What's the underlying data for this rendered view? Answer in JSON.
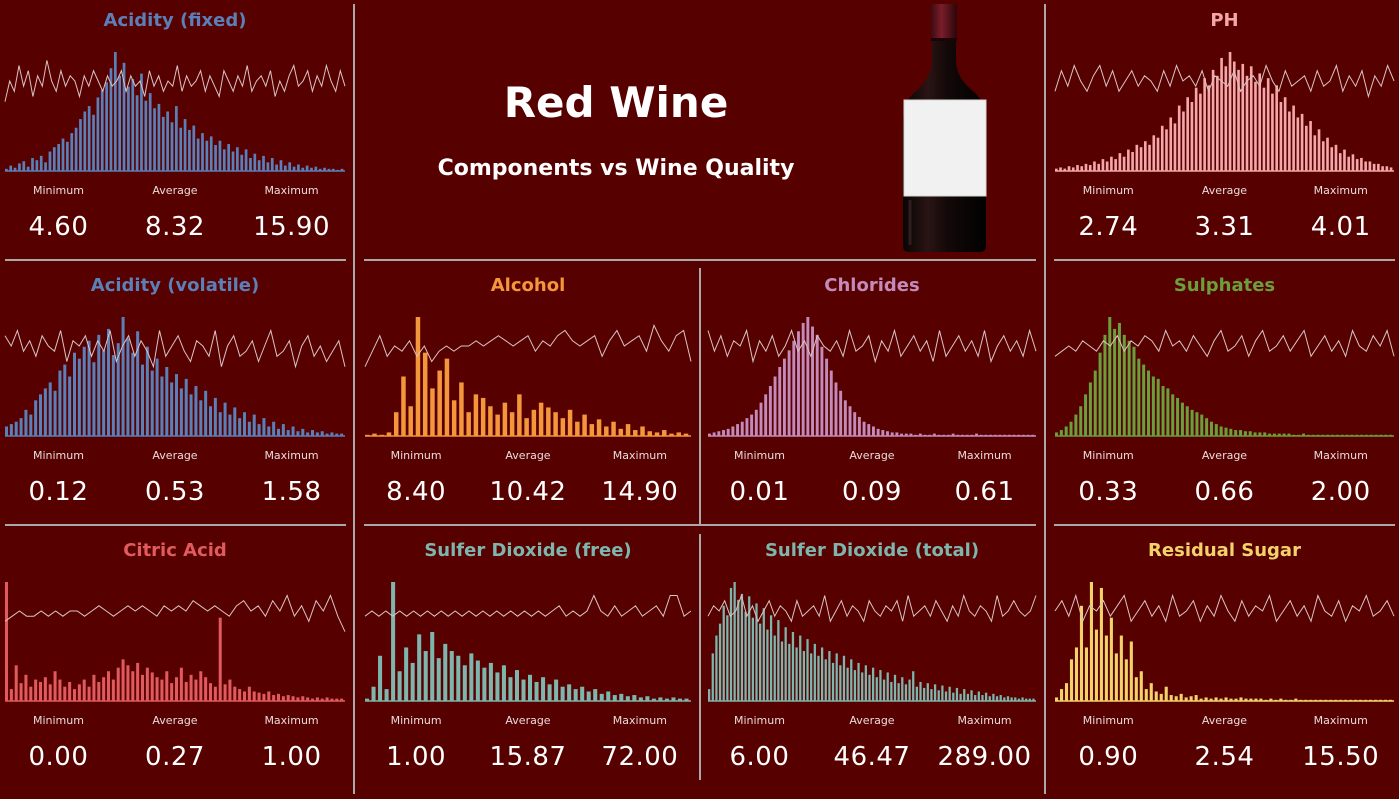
{
  "header": {
    "title": "Red Wine",
    "subtitle": "Components vs Wine Quality",
    "image": "wine-bottle-icon"
  },
  "labels": {
    "min": "Minimum",
    "avg": "Average",
    "max": "Maximum"
  },
  "colors": {
    "background": "#570000",
    "divider": "#a9a9a9",
    "quality_line": "#d9c3c3"
  },
  "chart_data": [
    {
      "id": "acidity-fixed",
      "type": "bar",
      "title": "Acidity (fixed)",
      "color": "#5b7fb8",
      "x_range": [
        4.6,
        15.9
      ],
      "values": [
        2,
        5,
        3,
        7,
        9,
        4,
        12,
        10,
        14,
        8,
        18,
        22,
        25,
        30,
        27,
        35,
        40,
        48,
        55,
        60,
        52,
        68,
        75,
        82,
        95,
        110,
        88,
        100,
        78,
        85,
        70,
        90,
        65,
        72,
        58,
        62,
        50,
        55,
        45,
        60,
        40,
        48,
        38,
        42,
        30,
        35,
        28,
        32,
        24,
        28,
        20,
        25,
        18,
        22,
        15,
        20,
        12,
        16,
        10,
        14,
        8,
        12,
        6,
        10,
        5,
        8,
        4,
        6,
        3,
        5,
        3,
        4,
        2,
        3,
        2,
        2,
        1,
        2
      ],
      "quality": [
        3.2,
        3.6,
        3.4,
        3.9,
        3.5,
        3.8,
        3.3,
        3.7,
        3.5,
        4.0,
        3.6,
        3.4,
        3.8,
        3.5,
        3.7,
        3.6,
        3.3,
        3.7,
        3.5,
        3.8,
        3.6,
        3.4,
        3.7,
        3.5,
        3.6,
        3.8,
        3.4,
        3.7,
        3.5,
        3.6,
        3.3,
        3.8,
        3.5,
        3.7,
        3.4,
        3.6,
        3.5,
        3.9,
        3.4,
        3.7,
        3.5,
        3.6,
        3.8,
        3.4,
        3.7,
        3.5,
        3.3,
        3.8,
        3.6,
        3.4,
        3.7,
        3.5,
        3.9,
        3.4,
        3.6,
        3.7,
        3.5,
        3.8,
        3.3,
        3.6,
        3.4,
        3.7,
        3.9,
        3.5,
        3.6,
        3.8,
        3.4,
        3.7,
        3.5,
        3.9,
        3.6,
        3.4,
        3.8,
        3.5
      ],
      "stats": {
        "min": "4.60",
        "avg": "8.32",
        "max": "15.90"
      }
    },
    {
      "id": "ph",
      "type": "bar",
      "title": "PH",
      "color": "#f4a7a9",
      "x_range": [
        2.74,
        4.01
      ],
      "values": [
        2,
        3,
        2,
        4,
        3,
        5,
        4,
        6,
        5,
        8,
        6,
        10,
        8,
        12,
        10,
        15,
        12,
        18,
        16,
        22,
        20,
        25,
        22,
        30,
        28,
        38,
        35,
        45,
        40,
        55,
        50,
        62,
        58,
        70,
        65,
        78,
        72,
        85,
        80,
        95,
        88,
        100,
        92,
        85,
        90,
        80,
        88,
        75,
        82,
        70,
        78,
        65,
        72,
        58,
        62,
        50,
        55,
        45,
        48,
        38,
        42,
        30,
        35,
        25,
        28,
        20,
        22,
        15,
        18,
        12,
        14,
        10,
        11,
        8,
        8,
        6,
        6,
        4,
        4,
        3
      ],
      "quality": [
        3.4,
        3.8,
        3.5,
        3.9,
        3.6,
        3.4,
        3.7,
        3.9,
        3.5,
        3.8,
        3.4,
        3.6,
        3.8,
        3.5,
        3.7,
        3.6,
        3.4,
        3.8,
        3.5,
        3.9,
        3.6,
        3.7,
        3.5,
        3.8,
        3.4,
        3.7,
        3.6,
        3.5,
        3.8,
        3.4,
        3.6,
        3.7,
        3.5,
        3.9,
        3.6,
        3.4,
        3.8,
        3.5,
        3.6,
        3.7,
        3.4,
        3.8,
        3.5,
        3.6,
        3.9,
        3.4,
        3.7,
        3.5,
        3.8,
        3.3,
        3.7,
        3.5,
        3.9,
        3.6
      ],
      "stats": {
        "min": "2.74",
        "avg": "3.31",
        "max": "4.01"
      }
    },
    {
      "id": "acidity-volatile",
      "type": "bar",
      "title": "Acidity (volatile)",
      "color": "#5b7fb8",
      "x_range": [
        0.12,
        1.58
      ],
      "values": [
        8,
        10,
        12,
        15,
        22,
        18,
        30,
        35,
        40,
        45,
        38,
        55,
        60,
        50,
        70,
        65,
        75,
        80,
        62,
        85,
        72,
        90,
        68,
        78,
        100,
        82,
        70,
        88,
        60,
        75,
        55,
        65,
        50,
        58,
        45,
        52,
        40,
        48,
        35,
        42,
        30,
        38,
        25,
        32,
        20,
        28,
        18,
        24,
        15,
        20,
        12,
        18,
        10,
        15,
        8,
        12,
        6,
        10,
        5,
        8,
        4,
        6,
        3,
        5,
        3,
        4,
        2,
        3,
        2,
        2
      ],
      "quality": [
        3.8,
        3.6,
        3.9,
        3.5,
        3.7,
        3.4,
        3.8,
        3.6,
        3.5,
        3.9,
        3.3,
        3.7,
        3.6,
        3.8,
        3.4,
        3.7,
        3.5,
        3.9,
        3.3,
        3.6,
        3.8,
        3.4,
        3.7,
        3.5,
        3.2,
        3.9,
        3.4,
        3.6,
        3.8,
        3.5,
        3.3,
        3.7,
        3.6,
        3.4,
        3.9,
        3.2,
        3.6,
        3.8,
        3.4,
        3.5,
        3.7,
        3.3,
        3.6,
        3.9,
        3.4,
        3.5,
        3.7,
        3.2,
        3.6,
        3.8,
        3.4,
        3.6,
        3.3,
        3.5,
        3.7,
        3.2
      ],
      "stats": {
        "min": "0.12",
        "avg": "0.53",
        "max": "1.58"
      }
    },
    {
      "id": "alcohol",
      "type": "bar",
      "title": "Alcohol",
      "color": "#f3963c",
      "x_range": [
        8.4,
        14.9
      ],
      "values": [
        1,
        2,
        1,
        3,
        20,
        50,
        25,
        100,
        70,
        40,
        55,
        65,
        30,
        45,
        20,
        35,
        32,
        25,
        18,
        28,
        20,
        35,
        15,
        22,
        28,
        24,
        20,
        15,
        22,
        12,
        18,
        10,
        14,
        8,
        12,
        6,
        10,
        5,
        8,
        4,
        3,
        5,
        2,
        3,
        2
      ],
      "quality": [
        3.2,
        3.5,
        3.8,
        3.4,
        3.6,
        3.5,
        3.7,
        3.4,
        3.6,
        3.3,
        3.5,
        3.6,
        3.5,
        3.6,
        3.6,
        3.7,
        3.6,
        3.7,
        3.8,
        3.7,
        3.6,
        3.7,
        3.8,
        3.5,
        3.7,
        3.6,
        3.8,
        3.9,
        3.7,
        3.6,
        3.7,
        3.8,
        3.4,
        3.7,
        3.9,
        3.6,
        3.7,
        3.8,
        3.5,
        4.0,
        3.7,
        3.5,
        3.8,
        3.9,
        3.3
      ],
      "stats": {
        "min": "8.40",
        "avg": "10.42",
        "max": "14.90"
      }
    },
    {
      "id": "chlorides",
      "type": "bar",
      "title": "Chlorides",
      "color": "#c38aba",
      "x_range": [
        0.01,
        0.61
      ],
      "values": [
        2,
        3,
        4,
        5,
        6,
        8,
        10,
        12,
        15,
        18,
        22,
        28,
        35,
        42,
        50,
        58,
        65,
        72,
        80,
        88,
        95,
        100,
        92,
        85,
        75,
        65,
        55,
        45,
        38,
        30,
        25,
        20,
        16,
        12,
        10,
        8,
        6,
        5,
        4,
        3,
        3,
        2,
        2,
        2,
        1,
        2,
        1,
        1,
        2,
        1,
        1,
        1,
        2,
        1,
        1,
        1,
        1,
        2,
        1,
        1,
        1,
        1,
        1,
        1,
        1,
        1,
        1,
        1,
        1,
        1
      ],
      "quality": [
        3.9,
        3.5,
        3.8,
        3.4,
        3.7,
        3.6,
        3.9,
        3.3,
        3.7,
        3.5,
        3.8,
        3.4,
        3.6,
        3.9,
        3.5,
        3.7,
        3.4,
        3.8,
        3.6,
        3.5,
        3.7,
        3.4,
        3.9,
        3.5,
        3.6,
        3.8,
        3.3,
        3.7,
        3.5,
        3.9,
        3.4,
        3.6,
        3.8,
        3.5,
        3.7,
        3.3,
        3.9,
        3.4,
        3.6,
        3.8,
        3.5,
        3.7,
        3.4,
        3.9,
        3.3,
        3.6,
        3.8,
        3.5,
        3.7,
        3.4,
        3.9,
        3.5
      ],
      "stats": {
        "min": "0.01",
        "avg": "0.09",
        "max": "0.61"
      }
    },
    {
      "id": "sulphates",
      "type": "bar",
      "title": "Sulphates",
      "color": "#6c9e3c",
      "x_range": [
        0.33,
        2.0
      ],
      "values": [
        3,
        5,
        8,
        12,
        18,
        25,
        35,
        45,
        55,
        70,
        85,
        100,
        90,
        95,
        85,
        80,
        75,
        65,
        60,
        55,
        50,
        48,
        42,
        40,
        35,
        32,
        28,
        25,
        22,
        20,
        18,
        15,
        12,
        10,
        8,
        7,
        6,
        5,
        5,
        4,
        4,
        3,
        3,
        3,
        2,
        2,
        2,
        2,
        2,
        1,
        1,
        2,
        1,
        1,
        1,
        1,
        1,
        1,
        1,
        1,
        1,
        1,
        1,
        1,
        1,
        1,
        1,
        1,
        1,
        1
      ],
      "quality": [
        3.4,
        3.5,
        3.6,
        3.5,
        3.7,
        3.6,
        3.5,
        3.7,
        3.6,
        3.8,
        3.5,
        3.7,
        3.6,
        3.8,
        3.7,
        3.5,
        3.9,
        3.6,
        3.7,
        3.5,
        3.8,
        3.6,
        3.4,
        3.7,
        3.9,
        3.5,
        3.6,
        3.8,
        3.4,
        3.7,
        3.9,
        3.5,
        3.6,
        3.8,
        3.5,
        3.7,
        3.9,
        3.4,
        3.6,
        3.8,
        3.5,
        3.7,
        3.4,
        3.9,
        3.6,
        3.5,
        3.8,
        3.6,
        3.9,
        3.4
      ],
      "stats": {
        "min": "0.33",
        "avg": "0.66",
        "max": "2.00"
      }
    },
    {
      "id": "citric-acid",
      "type": "bar",
      "title": "Citric Acid",
      "color": "#e05a5e",
      "x_range": [
        0.0,
        1.0
      ],
      "values": [
        100,
        10,
        30,
        15,
        22,
        12,
        18,
        16,
        20,
        14,
        25,
        18,
        12,
        16,
        10,
        14,
        18,
        12,
        22,
        16,
        20,
        25,
        18,
        28,
        35,
        30,
        25,
        32,
        22,
        28,
        24,
        20,
        18,
        25,
        15,
        20,
        28,
        16,
        22,
        18,
        25,
        20,
        15,
        12,
        70,
        14,
        18,
        12,
        10,
        8,
        12,
        8,
        7,
        6,
        8,
        5,
        6,
        4,
        5,
        4,
        3,
        4,
        3,
        2,
        3,
        2,
        3,
        2,
        2,
        2
      ],
      "quality": [
        3.4,
        3.5,
        3.6,
        3.5,
        3.5,
        3.6,
        3.5,
        3.6,
        3.5,
        3.6,
        3.6,
        3.5,
        3.6,
        3.7,
        3.6,
        3.5,
        3.6,
        3.7,
        3.6,
        3.7,
        3.6,
        3.5,
        3.7,
        3.6,
        3.7,
        3.6,
        3.8,
        3.7,
        3.6,
        3.7,
        3.6,
        3.5,
        3.7,
        3.8,
        3.6,
        3.7,
        3.5,
        3.8,
        3.6,
        3.9,
        3.5,
        3.7,
        3.4,
        3.8,
        3.6,
        3.9,
        3.5,
        3.2
      ],
      "stats": {
        "min": "0.00",
        "avg": "0.27",
        "max": "1.00"
      }
    },
    {
      "id": "sulfur-dioxide-free",
      "type": "bar",
      "title": "Sulfer Dioxide (free)",
      "color": "#7eb5ad",
      "x_range": [
        1.0,
        72.0
      ],
      "values": [
        2,
        12,
        38,
        10,
        100,
        25,
        45,
        32,
        56,
        42,
        58,
        36,
        48,
        42,
        38,
        30,
        40,
        34,
        28,
        32,
        24,
        30,
        20,
        26,
        18,
        22,
        16,
        20,
        14,
        18,
        12,
        14,
        10,
        12,
        8,
        10,
        6,
        8,
        5,
        6,
        4,
        5,
        3,
        4,
        2,
        3,
        2,
        3,
        2,
        2
      ],
      "quality": [
        3.5,
        3.6,
        3.5,
        3.6,
        3.5,
        3.6,
        3.5,
        3.6,
        3.5,
        3.6,
        3.5,
        3.6,
        3.5,
        3.6,
        3.5,
        3.6,
        3.5,
        3.6,
        3.5,
        3.6,
        3.5,
        3.6,
        3.5,
        3.6,
        3.5,
        3.6,
        3.5,
        3.6,
        3.7,
        3.5,
        3.6,
        3.5,
        3.6,
        3.9,
        3.6,
        3.5,
        3.7,
        3.5,
        3.6,
        3.7,
        3.5,
        3.6,
        3.7,
        3.5,
        3.9,
        3.9,
        3.5,
        3.6
      ],
      "stats": {
        "min": "1.00",
        "avg": "15.87",
        "max": "72.00"
      }
    },
    {
      "id": "sulfur-dioxide-total",
      "type": "bar",
      "title": "Sulfer Dioxide (total)",
      "color": "#7eb5ad",
      "x_range": [
        6.0,
        289.0
      ],
      "values": [
        10,
        40,
        55,
        65,
        80,
        72,
        95,
        100,
        85,
        90,
        75,
        88,
        70,
        82,
        65,
        78,
        60,
        72,
        55,
        68,
        50,
        62,
        48,
        58,
        45,
        55,
        42,
        52,
        40,
        48,
        38,
        45,
        35,
        42,
        32,
        40,
        30,
        38,
        28,
        35,
        26,
        32,
        24,
        30,
        22,
        28,
        20,
        26,
        18,
        24,
        16,
        22,
        15,
        20,
        14,
        18,
        25,
        12,
        16,
        11,
        15,
        10,
        14,
        9,
        13,
        8,
        12,
        7,
        11,
        6,
        10,
        6,
        9,
        5,
        8,
        5,
        7,
        4,
        6,
        4,
        5,
        3,
        4,
        3,
        3,
        2,
        3,
        2,
        2,
        2
      ],
      "quality": [
        3.5,
        3.7,
        3.6,
        3.8,
        3.5,
        3.6,
        3.9,
        3.5,
        3.7,
        3.4,
        3.6,
        3.8,
        3.5,
        3.7,
        3.6,
        3.4,
        3.8,
        3.5,
        3.6,
        3.7,
        3.5,
        3.9,
        3.4,
        3.6,
        3.8,
        3.5,
        3.7,
        3.6,
        3.4,
        3.8,
        3.6,
        3.5,
        3.7,
        3.6,
        3.8,
        3.4,
        3.9,
        3.5,
        3.6,
        3.7,
        3.5,
        3.8,
        3.6,
        3.4,
        3.7,
        3.5,
        3.9,
        3.6,
        3.5,
        3.7,
        3.6,
        3.4,
        3.9,
        3.5,
        3.6,
        3.8,
        3.6,
        3.5,
        3.6,
        3.9
      ],
      "stats": {
        "min": "6.00",
        "avg": "46.47",
        "max": "289.00"
      }
    },
    {
      "id": "residual-sugar",
      "type": "bar",
      "title": "Residual Sugar",
      "color": "#f2d36a",
      "x_range": [
        0.9,
        15.5
      ],
      "values": [
        3,
        10,
        15,
        35,
        45,
        80,
        45,
        100,
        60,
        95,
        55,
        70,
        40,
        55,
        35,
        50,
        20,
        25,
        10,
        15,
        8,
        6,
        12,
        5,
        4,
        6,
        3,
        4,
        5,
        2,
        3,
        2,
        3,
        2,
        3,
        2,
        2,
        3,
        2,
        2,
        2,
        2,
        1,
        2,
        1,
        2,
        1,
        1,
        2,
        1,
        1,
        1,
        1,
        1,
        1,
        1,
        1,
        1,
        1,
        1,
        1,
        1,
        1,
        1,
        1,
        1,
        1,
        1
      ],
      "quality": [
        3.6,
        3.8,
        3.5,
        3.9,
        3.4,
        3.7,
        3.6,
        3.8,
        3.5,
        3.7,
        3.9,
        3.4,
        3.6,
        3.8,
        3.5,
        3.7,
        3.4,
        3.9,
        3.5,
        3.6,
        3.8,
        3.4,
        3.7,
        3.5,
        3.9,
        3.6,
        3.4,
        3.8,
        3.5,
        3.7,
        3.6,
        3.9,
        3.4,
        3.6,
        3.8,
        3.5,
        3.7,
        3.4,
        3.9,
        3.6,
        3.5,
        3.8,
        3.4,
        3.7,
        3.6,
        3.9,
        3.5,
        3.6,
        3.8,
        3.5
      ],
      "stats": {
        "min": "0.90",
        "avg": "2.54",
        "max": "15.50"
      }
    }
  ]
}
